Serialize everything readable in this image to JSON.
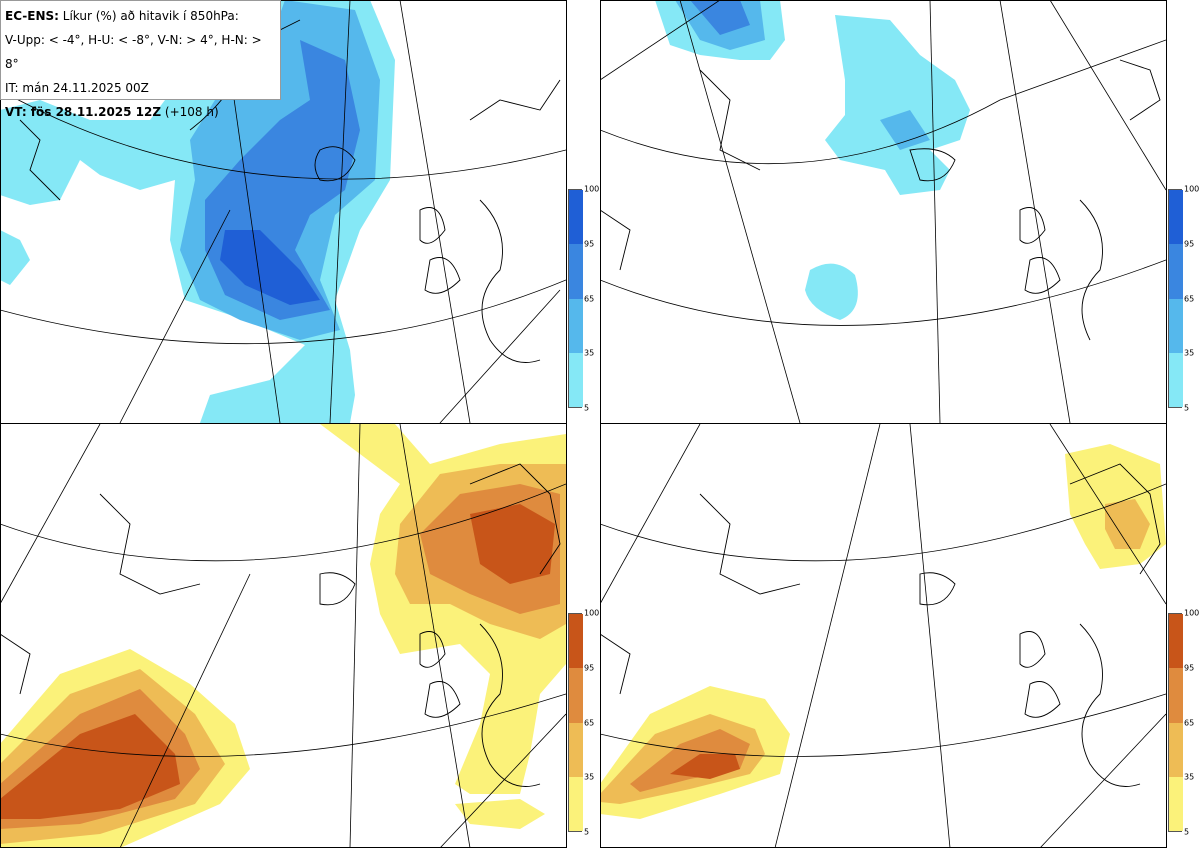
{
  "header": {
    "line1_bold": "EC-ENS:",
    "line1_rest": "Líkur (%) að hitavik í 850hPa:",
    "line2": "V-Upp: < -4°, H-U: < -8°, V-N: > 4°, H-N: > 8°",
    "line3": "IT: mán 24.11.2025 00Z",
    "line4_bold": "VT: fös 28.11.2025 12Z",
    "line4_rest": "(+108 h)"
  },
  "panels": [
    {
      "id": "V-Upp",
      "threshold": "< -4°",
      "palette": "blue"
    },
    {
      "id": "H-U",
      "threshold": "< -8°",
      "palette": "blue"
    },
    {
      "id": "V-N",
      "threshold": "> 4°",
      "palette": "warm"
    },
    {
      "id": "H-N",
      "threshold": "> 8°",
      "palette": "warm"
    }
  ],
  "colorbar": {
    "ticks": [
      "100",
      "95",
      "65",
      "35",
      "5"
    ],
    "blue_colors": [
      "#1f5fd6",
      "#3a86e0",
      "#55b8ec",
      "#85e8f6"
    ],
    "warm_colors": [
      "#c85519",
      "#df8b3e",
      "#eebc55",
      "#fbf27a"
    ]
  }
}
